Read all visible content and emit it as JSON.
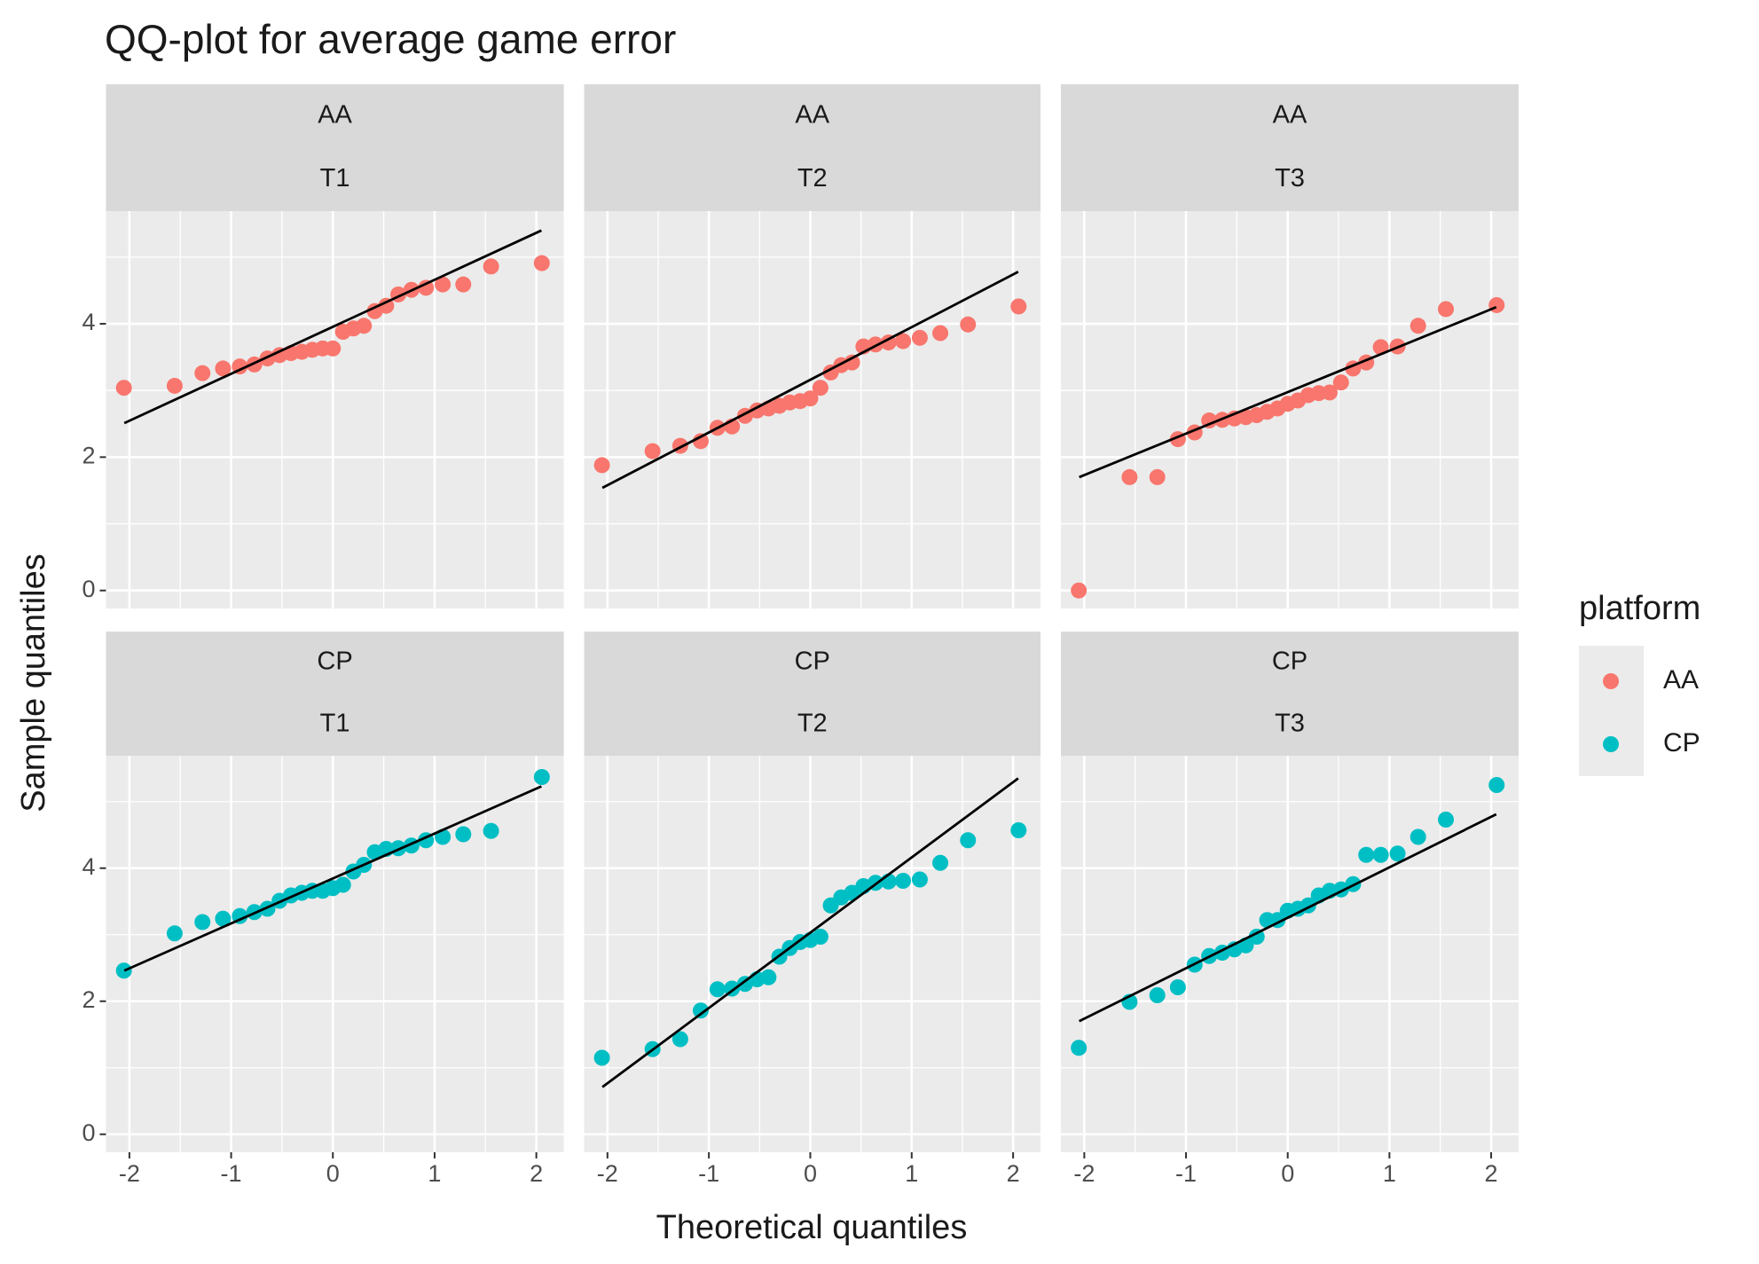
{
  "title": "QQ-plot for average game error",
  "x_label": "Theoretical quantiles",
  "y_label": "Sample quantiles",
  "legend": {
    "title": "platform",
    "entries": [
      {
        "name": "AA",
        "color": "#F8766D"
      },
      {
        "name": "CP",
        "color": "#00BFC4"
      }
    ]
  },
  "chart_data": [
    {
      "type": "scatter",
      "strip": [
        "AA",
        "T1"
      ],
      "color": "#F8766D",
      "x": [
        -2.054,
        -1.555,
        -1.282,
        -1.08,
        -0.915,
        -0.772,
        -0.643,
        -0.524,
        -0.412,
        -0.305,
        -0.202,
        -0.1,
        0,
        0.1,
        0.202,
        0.305,
        0.412,
        0.524,
        0.643,
        0.772,
        0.915,
        1.08,
        1.282,
        1.555,
        2.054
      ],
      "y": [
        3.04,
        3.07,
        3.26,
        3.33,
        3.36,
        3.39,
        3.48,
        3.53,
        3.56,
        3.58,
        3.61,
        3.63,
        3.63,
        3.88,
        3.93,
        3.97,
        4.19,
        4.27,
        4.44,
        4.51,
        4.54,
        4.59,
        4.59,
        4.86,
        4.91
      ],
      "line": {
        "x": [
          -2.05,
          2.05
        ],
        "y": [
          2.51,
          5.4
        ]
      },
      "xlim": [
        -2.23,
        2.27
      ],
      "ylim": [
        -0.27,
        5.69
      ],
      "xticks": [
        -2,
        -1,
        0,
        1,
        2
      ],
      "yticks": [
        0,
        2,
        4
      ],
      "grid": true
    },
    {
      "type": "scatter",
      "strip": [
        "AA",
        "T2"
      ],
      "color": "#F8766D",
      "x": [
        -2.054,
        -1.555,
        -1.282,
        -1.08,
        -0.915,
        -0.772,
        -0.643,
        -0.524,
        -0.412,
        -0.305,
        -0.202,
        -0.1,
        0,
        0.1,
        0.202,
        0.305,
        0.412,
        0.524,
        0.643,
        0.772,
        0.915,
        1.08,
        1.282,
        1.555,
        2.054
      ],
      "y": [
        1.88,
        2.09,
        2.17,
        2.24,
        2.44,
        2.46,
        2.62,
        2.7,
        2.73,
        2.77,
        2.82,
        2.84,
        2.88,
        3.04,
        3.27,
        3.38,
        3.42,
        3.66,
        3.69,
        3.72,
        3.74,
        3.79,
        3.86,
        3.99,
        4.26
      ],
      "line": {
        "x": [
          -2.05,
          2.05
        ],
        "y": [
          1.54,
          4.78
        ]
      },
      "xlim": [
        -2.23,
        2.27
      ],
      "ylim": [
        -0.27,
        5.69
      ],
      "xticks": [
        -2,
        -1,
        0,
        1,
        2
      ],
      "yticks": [
        0,
        2,
        4
      ],
      "grid": true
    },
    {
      "type": "scatter",
      "strip": [
        "AA",
        "T3"
      ],
      "color": "#F8766D",
      "x": [
        -2.054,
        -1.555,
        -1.282,
        -1.08,
        -0.915,
        -0.772,
        -0.643,
        -0.524,
        -0.412,
        -0.305,
        -0.202,
        -0.1,
        0,
        0.1,
        0.202,
        0.305,
        0.412,
        0.524,
        0.643,
        0.772,
        0.915,
        1.08,
        1.282,
        1.555,
        2.054
      ],
      "y": [
        0.0,
        1.7,
        1.7,
        2.27,
        2.37,
        2.55,
        2.56,
        2.58,
        2.6,
        2.63,
        2.68,
        2.73,
        2.8,
        2.85,
        2.93,
        2.96,
        2.97,
        3.12,
        3.33,
        3.42,
        3.65,
        3.66,
        3.97,
        4.22,
        4.28
      ],
      "line": {
        "x": [
          -2.05,
          2.05
        ],
        "y": [
          1.7,
          4.25
        ]
      },
      "xlim": [
        -2.23,
        2.27
      ],
      "ylim": [
        -0.27,
        5.69
      ],
      "xticks": [
        -2,
        -1,
        0,
        1,
        2
      ],
      "yticks": [
        0,
        2,
        4
      ],
      "grid": true
    },
    {
      "type": "scatter",
      "strip": [
        "CP",
        "T1"
      ],
      "color": "#00BFC4",
      "x": [
        -2.054,
        -1.555,
        -1.282,
        -1.08,
        -0.915,
        -0.772,
        -0.643,
        -0.524,
        -0.412,
        -0.305,
        -0.202,
        -0.1,
        0,
        0.1,
        0.202,
        0.305,
        0.412,
        0.524,
        0.643,
        0.772,
        0.915,
        1.08,
        1.282,
        1.555,
        2.054
      ],
      "y": [
        2.46,
        3.02,
        3.19,
        3.24,
        3.28,
        3.34,
        3.39,
        3.51,
        3.59,
        3.63,
        3.66,
        3.66,
        3.7,
        3.75,
        3.95,
        4.05,
        4.24,
        4.29,
        4.3,
        4.34,
        4.42,
        4.47,
        4.51,
        4.56,
        5.37
      ],
      "line": {
        "x": [
          -2.05,
          2.05
        ],
        "y": [
          2.46,
          5.23
        ]
      },
      "xlim": [
        -2.23,
        2.27
      ],
      "ylim": [
        -0.27,
        5.69
      ],
      "xticks": [
        -2,
        -1,
        0,
        1,
        2
      ],
      "yticks": [
        0,
        2,
        4
      ],
      "grid": true
    },
    {
      "type": "scatter",
      "strip": [
        "CP",
        "T2"
      ],
      "color": "#00BFC4",
      "x": [
        -2.054,
        -1.555,
        -1.282,
        -1.08,
        -0.915,
        -0.772,
        -0.643,
        -0.524,
        -0.412,
        -0.305,
        -0.202,
        -0.1,
        0,
        0.1,
        0.202,
        0.305,
        0.412,
        0.524,
        0.643,
        0.772,
        0.915,
        1.08,
        1.282,
        1.555,
        2.054
      ],
      "y": [
        1.15,
        1.28,
        1.43,
        1.86,
        2.18,
        2.19,
        2.26,
        2.33,
        2.36,
        2.67,
        2.8,
        2.89,
        2.92,
        2.97,
        3.44,
        3.56,
        3.63,
        3.73,
        3.78,
        3.8,
        3.81,
        3.83,
        4.08,
        4.42,
        4.57
      ],
      "line": {
        "x": [
          -2.05,
          2.05
        ],
        "y": [
          0.71,
          5.35
        ]
      },
      "xlim": [
        -2.23,
        2.27
      ],
      "ylim": [
        -0.27,
        5.69
      ],
      "xticks": [
        -2,
        -1,
        0,
        1,
        2
      ],
      "yticks": [
        0,
        2,
        4
      ],
      "grid": true
    },
    {
      "type": "scatter",
      "strip": [
        "CP",
        "T3"
      ],
      "color": "#00BFC4",
      "x": [
        -2.054,
        -1.555,
        -1.282,
        -1.08,
        -0.915,
        -0.772,
        -0.643,
        -0.524,
        -0.412,
        -0.305,
        -0.202,
        -0.1,
        0,
        0.1,
        0.202,
        0.305,
        0.412,
        0.524,
        0.643,
        0.772,
        0.915,
        1.08,
        1.282,
        1.555,
        2.054
      ],
      "y": [
        1.3,
        1.99,
        2.09,
        2.21,
        2.55,
        2.68,
        2.73,
        2.78,
        2.84,
        2.97,
        3.22,
        3.22,
        3.36,
        3.39,
        3.44,
        3.59,
        3.66,
        3.68,
        3.76,
        4.2,
        4.2,
        4.22,
        4.47,
        4.73,
        5.25
      ],
      "line": {
        "x": [
          -2.05,
          2.05
        ],
        "y": [
          1.7,
          4.81
        ]
      },
      "xlim": [
        -2.23,
        2.27
      ],
      "ylim": [
        -0.27,
        5.69
      ],
      "xticks": [
        -2,
        -1,
        0,
        1,
        2
      ],
      "yticks": [
        0,
        2,
        4
      ],
      "grid": true
    }
  ]
}
